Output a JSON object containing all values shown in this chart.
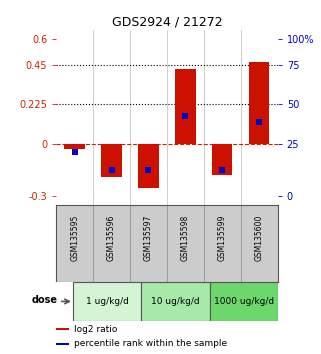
{
  "title": "GDS2924 / 21272",
  "samples": [
    "GSM135595",
    "GSM135596",
    "GSM135597",
    "GSM135598",
    "GSM135599",
    "GSM135600"
  ],
  "log2_ratio": [
    -0.03,
    -0.19,
    -0.25,
    0.43,
    -0.18,
    0.47
  ],
  "percentile_rank_pct": [
    28,
    16.5,
    16.5,
    51,
    16.5,
    47
  ],
  "dose_groups": [
    {
      "label": "1 ug/kg/d",
      "start": 0,
      "end": 2,
      "color": "#d4f5d4"
    },
    {
      "label": "10 ug/kg/d",
      "start": 2,
      "end": 4,
      "color": "#a8e8a8"
    },
    {
      "label": "1000 ug/kg/d",
      "start": 4,
      "end": 6,
      "color": "#6cd86c"
    }
  ],
  "ylim_left": [
    -0.35,
    0.65
  ],
  "yticks_left": [
    -0.3,
    0.0,
    0.225,
    0.45,
    0.6
  ],
  "ytick_labels_left": [
    "-0.3",
    "0",
    "0.225",
    "0.45",
    "0.6"
  ],
  "right_tick_positions": [
    -0.3,
    0.0,
    0.225,
    0.45,
    0.6
  ],
  "right_tick_labels": [
    "0",
    "25",
    "50",
    "75",
    "100%"
  ],
  "hlines": [
    0.225,
    0.45
  ],
  "bar_color": "#cc1100",
  "dot_color": "#0000cc",
  "zero_line_color": "#cc2200",
  "bar_width": 0.55,
  "label_log2": "log2 ratio",
  "label_pct": "percentile rank within the sample",
  "tick_color_left": "#cc2200",
  "tick_color_right": "#0000cc",
  "sample_box_color": "#cccccc",
  "dose_label": "dose"
}
